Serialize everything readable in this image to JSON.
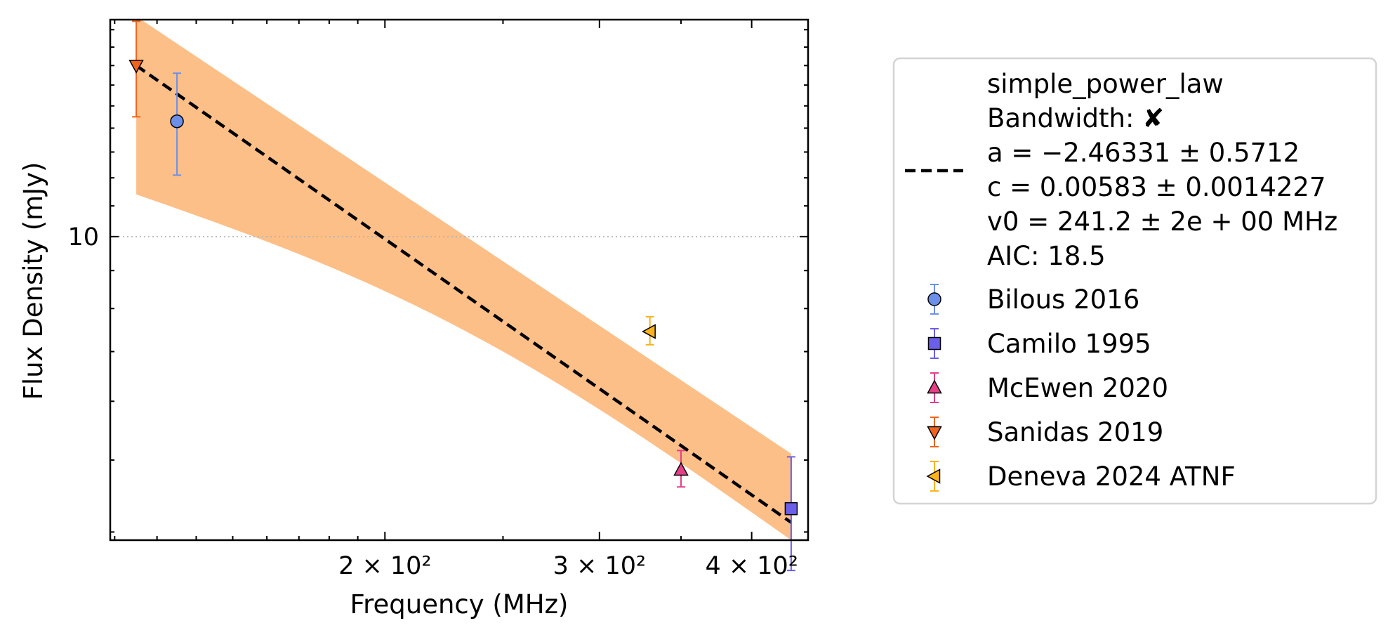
{
  "chart_data": {
    "type": "scatter",
    "xlabel": "Frequency (MHz)",
    "ylabel": "Flux Density (mJy)",
    "xscale": "log",
    "yscale": "log",
    "xlim": [
      119,
      445
    ],
    "ylim": [
      3.9,
      19.6
    ],
    "x_tick_labels": [
      {
        "value": 200,
        "label": "2 × 10²"
      },
      {
        "value": 300,
        "label": "3 × 10²"
      },
      {
        "value": 400,
        "label": "4 × 10²"
      }
    ],
    "y_tick_labels": [
      {
        "value": 10,
        "label": "10"
      }
    ],
    "grid": "dotted horizontal line at 10 mJy",
    "legend_position": "outside right",
    "fit": {
      "model": "simple_power_law",
      "a": -2.46331,
      "c": 0.00583,
      "v0": 241.2,
      "band_frequency_range": [
        125,
        431
      ],
      "band_flux_at_start": [
        11.4,
        19.8
      ],
      "band_flux_at_end": [
        3.9,
        5.1
      ],
      "line_color": "#000000",
      "band_color": "#fdbf88"
    },
    "legend": {
      "fit_lines": [
        "simple_power_law",
        "Bandwidth: ✘",
        "a = −2.46331 ± 0.5712",
        "c = 0.00583 ± 0.0014227",
        "v0 = 241.2 ± 2e + 00 MHz",
        "AIC: 18.5"
      ]
    },
    "series": [
      {
        "name": "Bilous 2016",
        "marker": "circle",
        "color": "#6c8fea",
        "points": [
          {
            "x": 135,
            "y": 14.3,
            "yerr_low": 12.1,
            "yerr_high": 16.6
          }
        ]
      },
      {
        "name": "Camilo 1995",
        "marker": "square",
        "color": "#6b5ee8",
        "points": [
          {
            "x": 431,
            "y": 4.3,
            "yerr_low": 3.55,
            "yerr_high": 5.05
          }
        ]
      },
      {
        "name": "McEwen 2020",
        "marker": "triangle-up",
        "color": "#e43f87",
        "points": [
          {
            "x": 350,
            "y": 4.85,
            "yerr_low": 4.6,
            "yerr_high": 5.15
          }
        ]
      },
      {
        "name": "Sanidas 2019",
        "marker": "triangle-down",
        "color": "#f0641e",
        "points": [
          {
            "x": 125,
            "y": 17.0,
            "yerr_low": 14.5,
            "yerr_high": 19.5
          }
        ]
      },
      {
        "name": "Deneva 2024 ATNF",
        "marker": "triangle-left",
        "color": "#fbb21c",
        "points": [
          {
            "x": 330,
            "y": 7.45,
            "yerr_low": 7.15,
            "yerr_high": 7.8
          }
        ]
      }
    ]
  }
}
